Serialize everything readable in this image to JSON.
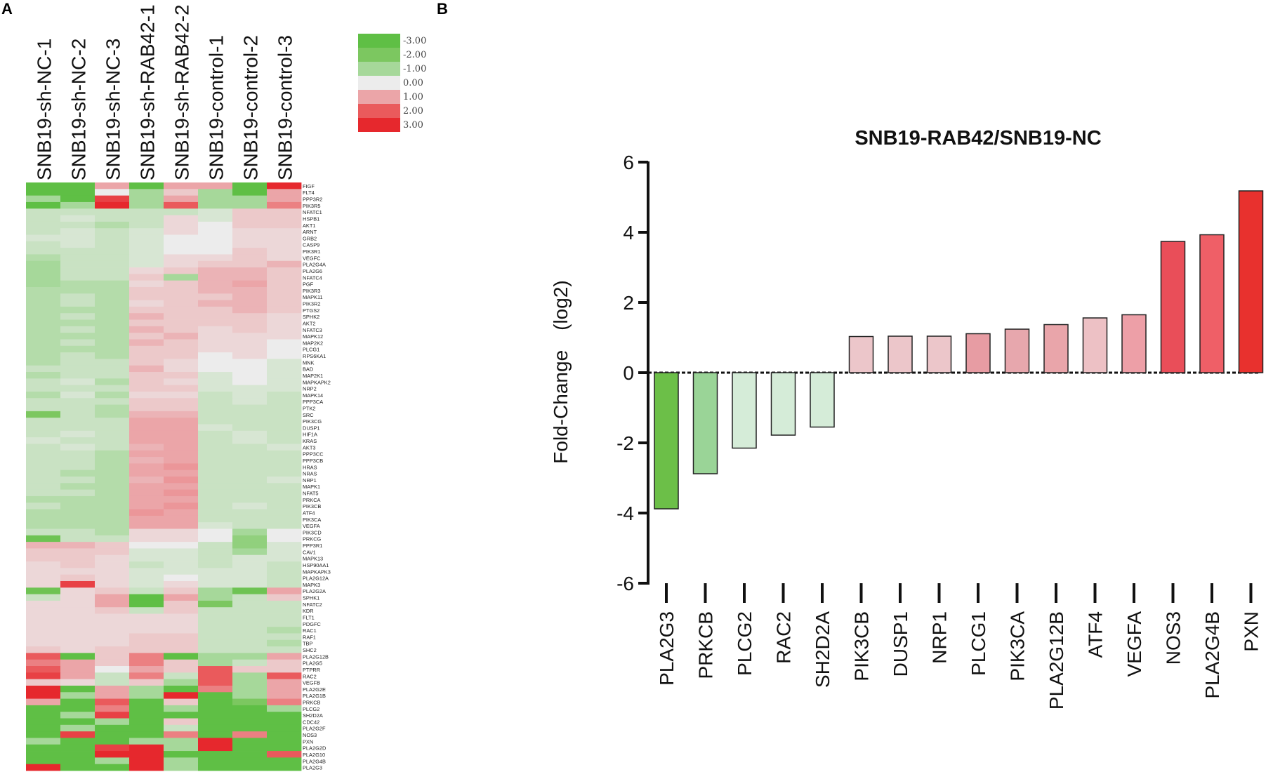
{
  "panel_a_label": "A",
  "panel_b_label": "B",
  "chart_data": [
    {
      "type": "heatmap",
      "title": "",
      "columns": [
        "SNB19-sh-NC-1",
        "SNB19-sh-NC-2",
        "SNB19-sh-NC-3",
        "SNB19-sh-RAB42-1",
        "SNB19-sh-RAB42-2",
        "SNB19-control-1",
        "SNB19-control-2",
        "SNB19-control-3"
      ],
      "rows": [
        "FIGF",
        "FLT4",
        "PPP3R2",
        "PIK3R5",
        "NFATC1",
        "HSPB1",
        "AKT1",
        "ARNT",
        "GRB2",
        "CASP9",
        "PIK3R1",
        "VEGFC",
        "PLA2G4A",
        "PLA2G6",
        "NFATC4",
        "PGF",
        "PIK3R3",
        "MAPK11",
        "PIK3R2",
        "PTGS2",
        "SPHK2",
        "AKT2",
        "NFATC3",
        "MAPK12",
        "MAP2K2",
        "PLCG1",
        "RPS6KA1",
        "MNK",
        "BAD",
        "MAP2K1",
        "MAPKAPK2",
        "NRP2",
        "MAPK14",
        "PPP3CA",
        "PTK2",
        "SRC",
        "PIK3CG",
        "DUSP1",
        "HIF1A",
        "KRAS",
        "AKT3",
        "PPP3CC",
        "PPP3CB",
        "HRAS",
        "NRAS",
        "NRP1",
        "MAPK1",
        "NFAT5",
        "PRKCA",
        "PIK3CB",
        "ATF4",
        "PIK3CA",
        "VEGFA",
        "PIK3CD",
        "PRKCG",
        "PPP3R1",
        "CAV1",
        "MAPK13",
        "HSP90AA1",
        "MAPKAPK3",
        "PLA2G12A",
        "MAPK3",
        "PLA2G2A",
        "SPHK1",
        "NFATC2",
        "KDR",
        "FLT1",
        "PDGFC",
        "RAC1",
        "RAF1",
        "TBP",
        "SHC2",
        "PLA2G12B",
        "PLA2G5",
        "PTPRR",
        "RAC2",
        "VEGFB",
        "PLA2G2E",
        "PLA2G1B",
        "PRKCB",
        "PLCG2",
        "SH2D2A",
        "CDC42",
        "PLA2G2F",
        "NOS3",
        "PXN",
        "PLA2G2D",
        "PLA2G10",
        "PLA2G4B",
        "PLA2G3"
      ],
      "values": [
        [
          -3,
          -3,
          1,
          -3,
          1,
          1,
          -3,
          3
        ],
        [
          -3,
          -3,
          0,
          -1,
          0.5,
          -1,
          -3,
          1
        ],
        [
          -1,
          -3,
          2.5,
          -1,
          1,
          -1,
          -1,
          1
        ],
        [
          -3,
          -1,
          3,
          -1,
          2,
          -1,
          -1,
          1.5
        ],
        [
          -0.5,
          -0.5,
          -0.5,
          -0.5,
          -0.5,
          -0.3,
          0.5,
          0.5
        ],
        [
          -0.5,
          -0.3,
          -0.5,
          -0.5,
          0.3,
          -0.3,
          0.5,
          0.5
        ],
        [
          -0.5,
          -0.5,
          -0.8,
          -0.5,
          0.3,
          0,
          0.5,
          0.5
        ],
        [
          -0.5,
          -0.3,
          -0.5,
          -0.3,
          0.3,
          0,
          0.3,
          0.3
        ],
        [
          -0.3,
          -0.3,
          -0.5,
          -0.3,
          0,
          0,
          0.3,
          0.3
        ],
        [
          -0.5,
          -0.3,
          -0.5,
          -0.3,
          0,
          0,
          0.3,
          0.3
        ],
        [
          -0.5,
          -0.5,
          -0.5,
          -0.3,
          0,
          0,
          0.5,
          0.3
        ],
        [
          -0.8,
          -0.5,
          -0.5,
          -0.3,
          0.3,
          0.3,
          0.5,
          0.3
        ],
        [
          -1,
          -0.5,
          -0.5,
          -0.3,
          0.3,
          0.5,
          0.5,
          0.8
        ],
        [
          -1,
          -0.5,
          -0.5,
          0.3,
          0.5,
          0.8,
          0.8,
          0.5
        ],
        [
          -1,
          -0.5,
          -0.5,
          0.5,
          -1,
          0.8,
          0.8,
          0.5
        ],
        [
          -1,
          -0.8,
          -0.8,
          0.3,
          0.5,
          0.8,
          1,
          0.5
        ],
        [
          -0.8,
          -0.8,
          -0.8,
          0.5,
          0.5,
          0.8,
          0.8,
          0.5
        ],
        [
          -0.8,
          -0.5,
          -0.8,
          0.5,
          0.5,
          0.5,
          0.8,
          0.5
        ],
        [
          -0.8,
          -0.5,
          -0.8,
          0.3,
          0.5,
          0.8,
          0.8,
          0.5
        ],
        [
          -0.8,
          -0.8,
          -0.8,
          0.5,
          0.5,
          0.5,
          0.8,
          0.5
        ],
        [
          -0.8,
          -0.5,
          -0.8,
          0.8,
          0.5,
          0.5,
          0.5,
          0.3
        ],
        [
          -0.8,
          -0.8,
          -0.8,
          0.5,
          0.5,
          0.5,
          0.5,
          0.3
        ],
        [
          -0.8,
          -0.5,
          -0.8,
          0.8,
          0.5,
          0.3,
          0.5,
          0.3
        ],
        [
          -0.8,
          -0.8,
          -0.8,
          0.5,
          0.8,
          0.3,
          0.3,
          0.3
        ],
        [
          -0.8,
          -0.5,
          -0.8,
          0.8,
          0.5,
          0.3,
          0.3,
          0
        ],
        [
          -0.8,
          -0.8,
          -0.8,
          0.5,
          0.5,
          0.3,
          0.3,
          0
        ],
        [
          -0.8,
          -0.5,
          -0.8,
          0.5,
          0.5,
          0,
          0.3,
          0
        ],
        [
          -0.8,
          -0.5,
          -0.5,
          0.5,
          0.3,
          0,
          0,
          -0.3
        ],
        [
          -0.5,
          -0.5,
          -0.5,
          0.8,
          0.3,
          0,
          0,
          -0.3
        ],
        [
          -0.8,
          -0.5,
          -0.5,
          0.5,
          0.5,
          -0.3,
          0,
          -0.3
        ],
        [
          -0.5,
          -0.3,
          -0.8,
          0.5,
          0.3,
          -0.3,
          0,
          -0.3
        ],
        [
          -0.5,
          -0.5,
          -0.5,
          0.5,
          0.5,
          -0.3,
          -0.3,
          -0.3
        ],
        [
          -0.8,
          -0.3,
          -0.8,
          0.3,
          0.3,
          -0.5,
          -0.3,
          -0.5
        ],
        [
          -0.5,
          -0.5,
          -0.5,
          0.5,
          0.5,
          -0.5,
          -0.3,
          -0.5
        ],
        [
          -0.5,
          -0.5,
          -0.8,
          0.5,
          0.5,
          -0.5,
          -0.5,
          -0.5
        ],
        [
          -2,
          -0.5,
          -0.8,
          0.8,
          0.8,
          -0.5,
          -0.5,
          -0.5
        ],
        [
          -0.5,
          -0.5,
          -0.5,
          1,
          1,
          -0.5,
          -0.5,
          -0.5
        ],
        [
          -0.5,
          -0.5,
          -0.5,
          1,
          1,
          -0.3,
          -0.5,
          -0.5
        ],
        [
          -0.5,
          -0.3,
          -0.5,
          1,
          1,
          -0.5,
          -0.3,
          -0.5
        ],
        [
          -0.3,
          -0.5,
          -0.5,
          1,
          1,
          -0.5,
          -0.3,
          -0.5
        ],
        [
          -0.5,
          -0.3,
          -0.5,
          0.8,
          1,
          -0.5,
          -0.5,
          -0.3
        ],
        [
          -0.5,
          -0.5,
          -0.8,
          1,
          1,
          -0.5,
          -0.5,
          -0.5
        ],
        [
          -0.5,
          -0.5,
          -0.8,
          0.8,
          1,
          -0.5,
          -0.5,
          -0.5
        ],
        [
          -0.5,
          -0.5,
          -0.8,
          1,
          1.2,
          -0.5,
          -0.5,
          -0.5
        ],
        [
          -0.5,
          -0.8,
          -0.8,
          1,
          1,
          -0.5,
          -0.5,
          -0.5
        ],
        [
          -0.5,
          -0.5,
          -0.8,
          0.8,
          1.2,
          -0.5,
          -0.5,
          -0.3
        ],
        [
          -0.5,
          -0.8,
          -0.8,
          1,
          1,
          -0.5,
          -0.5,
          -0.5
        ],
        [
          -0.5,
          -0.5,
          -0.8,
          1,
          1.2,
          -0.5,
          -0.5,
          -0.5
        ],
        [
          -0.8,
          -0.8,
          -0.8,
          1,
          1,
          -0.5,
          -0.5,
          -0.5
        ],
        [
          -0.5,
          -0.8,
          -0.8,
          1,
          1.2,
          -0.5,
          -0.3,
          -0.5
        ],
        [
          -0.8,
          -0.8,
          -0.8,
          1.2,
          1,
          -0.5,
          -0.5,
          -0.5
        ],
        [
          -0.8,
          -0.8,
          -0.8,
          1,
          1,
          -0.5,
          -0.5,
          -0.5
        ],
        [
          -0.8,
          -0.8,
          -0.8,
          1,
          1,
          -0.3,
          -0.5,
          -0.5
        ],
        [
          -0.5,
          -0.5,
          -0.8,
          0.3,
          0.3,
          0,
          -1,
          0
        ],
        [
          -2.5,
          -0.5,
          -0.5,
          0.3,
          0.3,
          0,
          -1.5,
          0
        ],
        [
          0.8,
          0.8,
          0.5,
          0,
          0,
          -0.5,
          -1.5,
          -0.3
        ],
        [
          0.5,
          0.5,
          0.5,
          -0.3,
          -0.3,
          -0.5,
          -1,
          -0.3
        ],
        [
          0.5,
          0.5,
          0.3,
          -0.3,
          -0.3,
          -0.5,
          -0.3,
          -0.3
        ],
        [
          0.3,
          0.5,
          0.3,
          -0.5,
          -0.3,
          -0.5,
          -0.3,
          -0.5
        ],
        [
          0.3,
          0.3,
          0.3,
          -0.3,
          -0.3,
          -0.3,
          -0.3,
          -0.5
        ],
        [
          0.3,
          0.5,
          0.3,
          -0.3,
          0,
          -0.3,
          -0.3,
          -0.5
        ],
        [
          0.3,
          2.5,
          0.3,
          -0.3,
          0.3,
          -0.3,
          -0.3,
          -0.5
        ],
        [
          -2.5,
          0.3,
          0.5,
          -0.5,
          0.5,
          -1,
          -2.5,
          1
        ],
        [
          -0.5,
          0.3,
          1,
          -3,
          1,
          -1,
          -0.5,
          0.5
        ],
        [
          0.3,
          0.3,
          1,
          -3,
          0.5,
          -2,
          -0.5,
          -0.5
        ],
        [
          0.3,
          0.3,
          0.5,
          -0.5,
          0.5,
          -0.5,
          -0.5,
          -0.5
        ],
        [
          0.3,
          0.3,
          0.3,
          0.3,
          0.3,
          -0.5,
          -0.5,
          -0.5
        ],
        [
          0.3,
          0.3,
          0.3,
          0.3,
          0.3,
          -0.5,
          -0.5,
          -0.5
        ],
        [
          0.3,
          0.3,
          0.3,
          0.3,
          0.3,
          -0.5,
          -0.5,
          -0.8
        ],
        [
          0.3,
          0.3,
          0.3,
          0.5,
          0.5,
          -0.5,
          -0.5,
          -0.5
        ],
        [
          0.3,
          0.3,
          0.3,
          0.5,
          0.5,
          -0.5,
          -0.5,
          -0.8
        ],
        [
          0.5,
          0.3,
          0.5,
          0.5,
          0.5,
          -0.5,
          -0.5,
          -0.5
        ],
        [
          2,
          -3,
          0.5,
          1.5,
          -3,
          -1,
          -1,
          1
        ],
        [
          1.5,
          1,
          0.5,
          1.5,
          0.5,
          -1,
          -0.5,
          0.5
        ],
        [
          2,
          1,
          0,
          1,
          0.5,
          2,
          0.5,
          0.5
        ],
        [
          2.5,
          1,
          -0.5,
          1.5,
          -0.5,
          2,
          -1,
          2
        ],
        [
          0.5,
          0.3,
          -0.5,
          0.5,
          -1,
          2,
          -1,
          1
        ],
        [
          3,
          -3,
          1,
          -1,
          -3,
          1.5,
          -1,
          1
        ],
        [
          3,
          -1,
          1,
          -1,
          3,
          -3,
          -1,
          1
        ],
        [
          1,
          -3,
          2,
          -3,
          0.5,
          -3,
          -2,
          1.5
        ],
        [
          -3,
          -3,
          1.5,
          -3,
          -1,
          -3,
          -3,
          -1
        ],
        [
          -3,
          -1,
          2.5,
          -3,
          -3,
          -3,
          -3,
          -3
        ],
        [
          -3,
          -3,
          -1,
          -3,
          0.5,
          -3,
          -3,
          -3
        ],
        [
          -3,
          -1,
          -3,
          -3,
          -0.5,
          -3,
          -3,
          -3
        ],
        [
          -3,
          2.5,
          -3,
          -3,
          1.5,
          -3,
          1.5,
          -3
        ],
        [
          -1,
          -3,
          -3,
          -1,
          -1,
          3,
          -3,
          -3
        ],
        [
          -3,
          -3,
          2.5,
          3,
          -1,
          3,
          -3,
          -3
        ],
        [
          -3,
          -3,
          3,
          3,
          -3,
          -3,
          -3,
          2
        ],
        [
          -3,
          -3,
          -1,
          3,
          -1,
          -3,
          -3,
          -3
        ],
        [
          3,
          -3,
          -3,
          3,
          -1,
          -3,
          -3,
          -3
        ]
      ],
      "color_scale": {
        "ticks": [
          "-3.00",
          "-2.00",
          "-1.00",
          "0.00",
          "1.00",
          "2.00",
          "3.00"
        ],
        "tick_values": [
          -3,
          -2,
          -1,
          0,
          1,
          2,
          3
        ],
        "colors": [
          "#5fbf45",
          "#7cc760",
          "#a6d89a",
          "#ececec",
          "#eba5a8",
          "#ea5a5c",
          "#e6282d"
        ]
      }
    },
    {
      "type": "bar",
      "title": "SNB19-RAB42/SNB19-NC",
      "xlabel": "",
      "ylabel": "Fold-Change　(log2)",
      "ylim": [
        -6,
        6
      ],
      "yticks": [
        6,
        4,
        2,
        0,
        -2,
        -4,
        -6
      ],
      "categories": [
        "PLA2G3",
        "PRKCB",
        "PLCG2",
        "RAC2",
        "SH2D2A",
        "PIK3CB",
        "DUSP1",
        "NRP1",
        "PLCG1",
        "PIK3CA",
        "PLA2G12B",
        "ATF4",
        "VEGFA",
        "NOS3",
        "PLA2G4B",
        "PXN"
      ],
      "values": [
        -3.88,
        -2.88,
        -2.15,
        -1.78,
        -1.55,
        1.03,
        1.04,
        1.04,
        1.11,
        1.24,
        1.37,
        1.56,
        1.65,
        3.74,
        3.93,
        5.18
      ],
      "colors": [
        "#6cbf48",
        "#9ad497",
        "#d5ecd8",
        "#d5ecd8",
        "#d5ecd8",
        "#ecc6ca",
        "#ecc6ca",
        "#ecc6ca",
        "#e79ca3",
        "#e7a7ad",
        "#e9a5aa",
        "#edc1c5",
        "#ed9fa7",
        "#e94e59",
        "#ef5f67",
        "#e8312e"
      ]
    }
  ]
}
